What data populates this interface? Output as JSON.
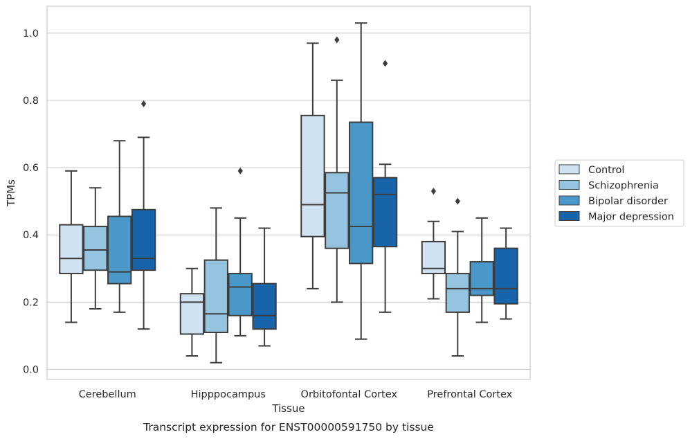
{
  "chart_data": {
    "type": "box",
    "title": "",
    "caption": "Transcript expression for ENST00000591750 by tissue",
    "xlabel": "Tissue",
    "ylabel": "TPMs",
    "ylim": [
      -0.03,
      1.08
    ],
    "yticks": [
      0.0,
      0.2,
      0.4,
      0.6,
      0.8,
      1.0
    ],
    "ytick_labels": [
      "0.0",
      "0.2",
      "0.4",
      "0.6",
      "0.8",
      "1.0"
    ],
    "grid": "horizontal",
    "legend_position": "right",
    "categories": [
      "Cerebellum",
      "Hipppocampus",
      "Orbitofontal Cortex",
      "Prefrontal Cortex"
    ],
    "series": [
      {
        "name": "Control",
        "color": "#d0e1f2",
        "boxes": [
          {
            "whislo": 0.14,
            "q1": 0.285,
            "med": 0.33,
            "q3": 0.43,
            "whishi": 0.59,
            "fliers": []
          },
          {
            "whislo": 0.04,
            "q1": 0.105,
            "med": 0.2,
            "q3": 0.225,
            "whishi": 0.3,
            "fliers": []
          },
          {
            "whislo": 0.24,
            "q1": 0.395,
            "med": 0.49,
            "q3": 0.755,
            "whishi": 0.97,
            "fliers": []
          },
          {
            "whislo": 0.21,
            "q1": 0.285,
            "med": 0.3,
            "q3": 0.38,
            "whishi": 0.44,
            "fliers": [
              0.53
            ]
          }
        ]
      },
      {
        "name": "Schizophrenia",
        "color": "#94c4df",
        "boxes": [
          {
            "whislo": 0.18,
            "q1": 0.295,
            "med": 0.355,
            "q3": 0.425,
            "whishi": 0.54,
            "fliers": []
          },
          {
            "whislo": 0.02,
            "q1": 0.11,
            "med": 0.165,
            "q3": 0.325,
            "whishi": 0.48,
            "fliers": []
          },
          {
            "whislo": 0.2,
            "q1": 0.36,
            "med": 0.525,
            "q3": 0.585,
            "whishi": 0.86,
            "fliers": [
              0.98
            ]
          },
          {
            "whislo": 0.04,
            "q1": 0.17,
            "med": 0.24,
            "q3": 0.285,
            "whishi": 0.41,
            "fliers": [
              0.5
            ]
          }
        ]
      },
      {
        "name": "Bipolar disorder",
        "color": "#4a98c9",
        "boxes": [
          {
            "whislo": 0.17,
            "q1": 0.255,
            "med": 0.29,
            "q3": 0.455,
            "whishi": 0.68,
            "fliers": []
          },
          {
            "whislo": 0.1,
            "q1": 0.16,
            "med": 0.245,
            "q3": 0.285,
            "whishi": 0.45,
            "fliers": [
              0.59
            ]
          },
          {
            "whislo": 0.09,
            "q1": 0.315,
            "med": 0.425,
            "q3": 0.735,
            "whishi": 1.03,
            "fliers": []
          },
          {
            "whislo": 0.14,
            "q1": 0.22,
            "med": 0.24,
            "q3": 0.32,
            "whishi": 0.45,
            "fliers": []
          }
        ]
      },
      {
        "name": "Major depression",
        "color": "#1764ab",
        "boxes": [
          {
            "whislo": 0.12,
            "q1": 0.295,
            "med": 0.33,
            "q3": 0.475,
            "whishi": 0.69,
            "fliers": [
              0.79
            ]
          },
          {
            "whislo": 0.07,
            "q1": 0.12,
            "med": 0.16,
            "q3": 0.255,
            "whishi": 0.42,
            "fliers": []
          },
          {
            "whislo": 0.17,
            "q1": 0.365,
            "med": 0.52,
            "q3": 0.57,
            "whishi": 0.61,
            "fliers": [
              0.91
            ]
          },
          {
            "whislo": 0.15,
            "q1": 0.195,
            "med": 0.24,
            "q3": 0.36,
            "whishi": 0.42,
            "fliers": []
          }
        ]
      }
    ]
  }
}
